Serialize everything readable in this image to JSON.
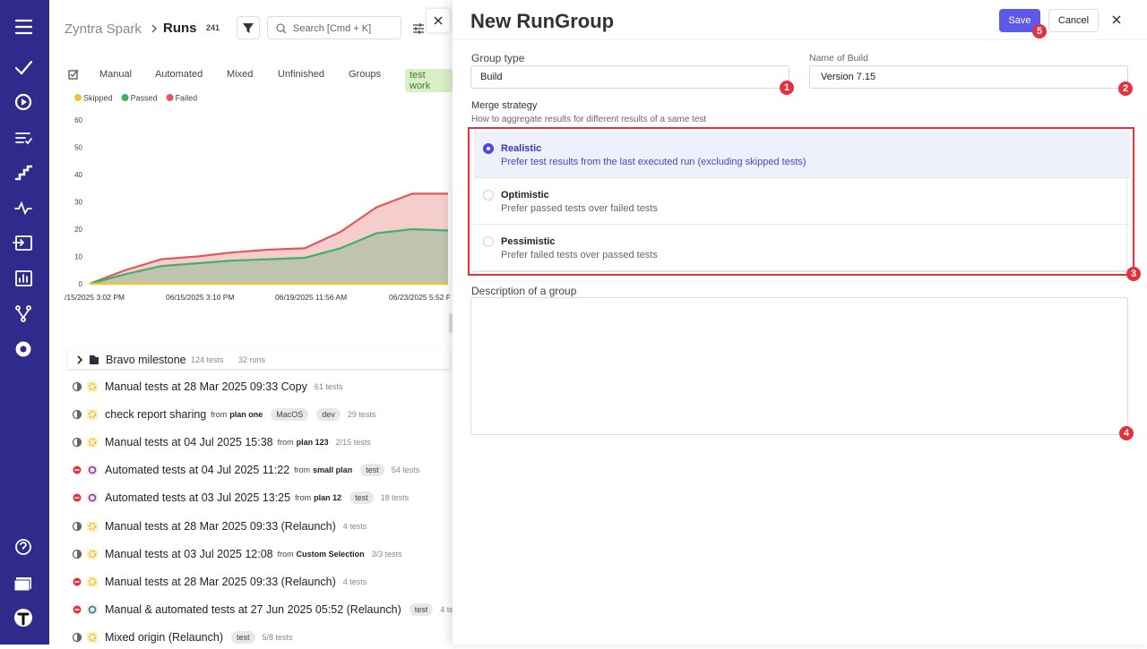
{
  "app": {
    "name": "Zyntra Spark",
    "section": "Runs",
    "count": "241",
    "search_placeholder": "Search [Cmd + K]"
  },
  "tabs": [
    "Manual",
    "Automated",
    "Mixed",
    "Unfinished",
    "Groups"
  ],
  "tag_filter": "test work",
  "chart": {
    "series": [
      {
        "name": "Skipped",
        "color": "#f2c230",
        "values": [
          0,
          0,
          0,
          0,
          0,
          0,
          0,
          0,
          0,
          0,
          0
        ]
      },
      {
        "name": "Passed",
        "color": "#3fb06a",
        "values": [
          0,
          3.5,
          6.5,
          7.5,
          8.5,
          9,
          9.5,
          13,
          18.5,
          20,
          19.5
        ]
      },
      {
        "name": "Failed",
        "color": "#e05a5a",
        "values": [
          0,
          5,
          9,
          10,
          11.5,
          12.5,
          13,
          19,
          28,
          33,
          33
        ]
      }
    ],
    "ylim": [
      0,
      60
    ],
    "yticks": [
      0,
      10,
      20,
      30,
      40,
      50,
      60
    ],
    "x_labels": [
      "/15/2025 3:02 PM",
      "06/15/2025 3:10 PM",
      "06/19/2025 11:56 AM",
      "06/23/2025 5:52 P"
    ]
  },
  "milestone": {
    "title": "Bravo milestone",
    "tests": "124 tests",
    "runs": "32 runs"
  },
  "from_word": "from",
  "runs": [
    {
      "title": "Manual tests at 28 Mar 2025 09:33 Copy",
      "status": "neutral",
      "kind": "manual",
      "count": "61 tests"
    },
    {
      "title": "check report sharing",
      "status": "neutral",
      "kind": "manual",
      "from": "plan one",
      "tags": [
        "MacOS",
        "dev"
      ],
      "count": "29 tests"
    },
    {
      "title": "Manual tests at 04 Jul 2025 15:38",
      "status": "neutral",
      "kind": "manual",
      "from": "plan 123",
      "count": "2/15 tests"
    },
    {
      "title": "Automated tests at 04 Jul 2025 11:22",
      "status": "failed",
      "kind": "automated",
      "from": "small plan",
      "tags": [
        "test"
      ],
      "count": "54 tests"
    },
    {
      "title": "Automated tests at 03 Jul 2025 13:25",
      "status": "failed",
      "kind": "automated",
      "from": "plan 12",
      "tags": [
        "test"
      ],
      "count": "18 tests"
    },
    {
      "title": "Manual tests at 28 Mar 2025 09:33 (Relaunch)",
      "status": "neutral",
      "kind": "manual",
      "count": "4 tests"
    },
    {
      "title": "Manual tests at 03 Jul 2025 12:08",
      "status": "neutral",
      "kind": "manual",
      "from": "Custom Selection",
      "count": "3/3 tests"
    },
    {
      "title": "Manual tests at 28 Mar 2025 09:33 (Relaunch)",
      "status": "failed",
      "kind": "manual",
      "count": "4 tests"
    },
    {
      "title": "Manual & automated tests at 27 Jun 2025 05:52 (Relaunch)",
      "status": "failed",
      "kind": "mixed",
      "tags": [
        "test"
      ],
      "count": "4 te"
    },
    {
      "title": "Mixed origin (Relaunch)",
      "status": "neutral",
      "kind": "manual",
      "tags": [
        "test"
      ],
      "count": "5/8 tests"
    }
  ],
  "modal": {
    "title": "New RunGroup",
    "save": "Save",
    "cancel": "Cancel",
    "group_type_label": "Group type",
    "group_type_value": "Build",
    "build_name_label": "Name of Build",
    "build_name_value": "Version 7.15",
    "merge_label": "Merge strategy",
    "merge_hint": "How to aggregate results for different results of a same test",
    "options": [
      {
        "title": "Realistic",
        "description": "Prefer test results from the last executed run (excluding skipped tests)",
        "selected": true
      },
      {
        "title": "Optimistic",
        "description": "Prefer passed tests over failed tests",
        "selected": false
      },
      {
        "title": "Pessimistic",
        "description": "Prefer failed tests over passed tests",
        "selected": false
      }
    ],
    "description_label": "Description of a group",
    "markers": [
      "1",
      "2",
      "3",
      "4",
      "5"
    ]
  }
}
